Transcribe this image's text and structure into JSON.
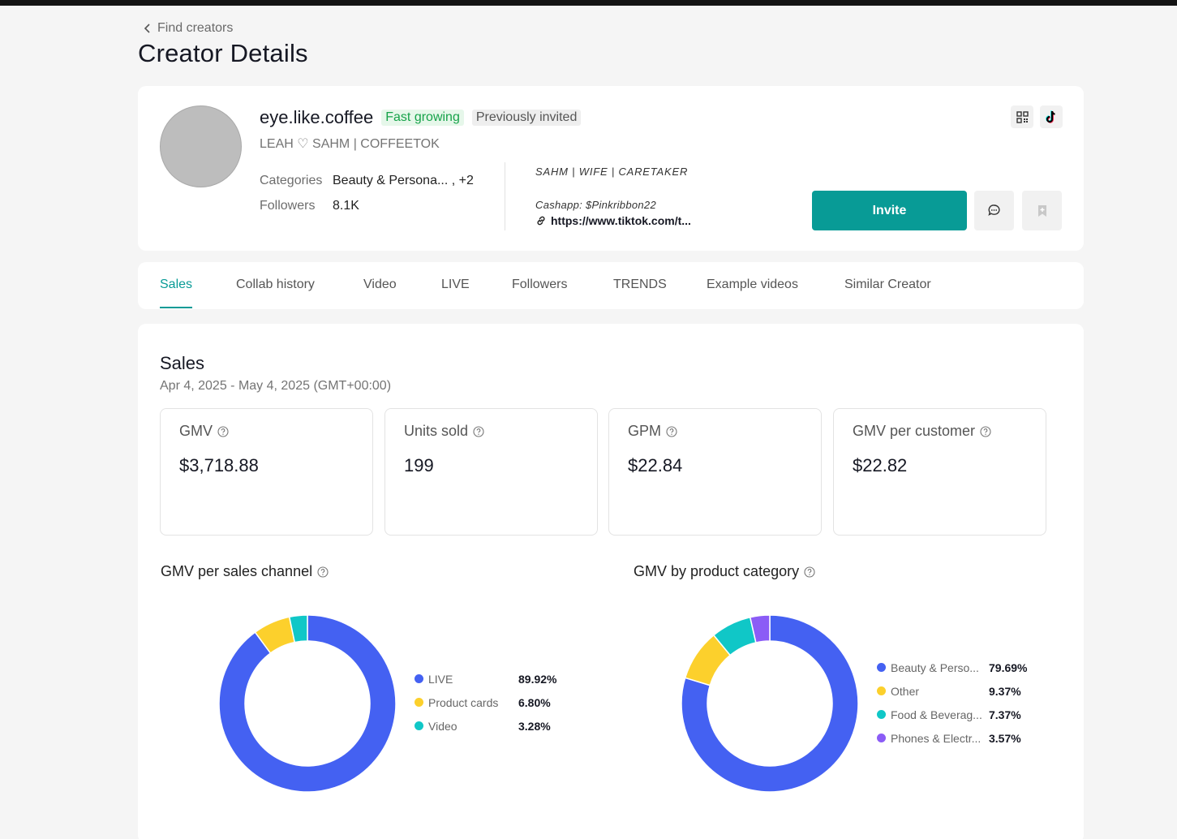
{
  "nav": {
    "back_label": "Find creators"
  },
  "page": {
    "title": "Creator Details"
  },
  "creator": {
    "handle": "eye.like.coffee",
    "badges": [
      "Fast growing",
      "Previously invited"
    ],
    "nickname": "LEAH ♡ SAHM | COFFEETOK",
    "categories_label": "Categories",
    "categories_value": "Beauty & Persona... , +2",
    "followers_label": "Followers",
    "followers_value": "8.1K",
    "bio_line1": "SAHM | WIFE | CARETAKER",
    "bio_line2": "Cashapp: $Pinkribbon22",
    "link": "https://www.tiktok.com/t..."
  },
  "actions": {
    "invite_label": "Invite",
    "icons": [
      "qr-code-icon",
      "tiktok-icon",
      "message-icon",
      "bookmark-icon"
    ]
  },
  "tabs": [
    {
      "label": "Sales",
      "active": true
    },
    {
      "label": "Collab history"
    },
    {
      "label": "Video"
    },
    {
      "label": "LIVE"
    },
    {
      "label": "Followers"
    },
    {
      "label": "TRENDS"
    },
    {
      "label": "Example videos"
    },
    {
      "label": "Similar Creator"
    }
  ],
  "sales": {
    "title": "Sales",
    "date_range": "Apr 4, 2025 - May 4, 2025 (GMT+00:00)",
    "metrics": [
      {
        "label": "GMV",
        "value": "$3,718.88"
      },
      {
        "label": "Units sold",
        "value": "199"
      },
      {
        "label": "GPM",
        "value": "$22.84"
      },
      {
        "label": "GMV per customer",
        "value": "$22.82"
      }
    ]
  },
  "chart_data": [
    {
      "type": "pie",
      "title": "GMV per sales channel",
      "categories": [
        "LIVE",
        "Product cards",
        "Video"
      ],
      "values": [
        89.92,
        6.8,
        3.28
      ],
      "labels": [
        "89.92%",
        "6.80%",
        "3.28%"
      ],
      "colors": [
        "#4461f2",
        "#fcd02c",
        "#10c7c7"
      ],
      "legend": "right"
    },
    {
      "type": "pie",
      "title": "GMV by product category",
      "categories": [
        "Beauty & Perso...",
        "Other",
        "Food & Beverag...",
        "Phones & Electr..."
      ],
      "values": [
        79.69,
        9.37,
        7.37,
        3.57
      ],
      "labels": [
        "79.69%",
        "9.37%",
        "7.37%",
        "3.57%"
      ],
      "colors": [
        "#4461f2",
        "#fcd02c",
        "#10c7c7",
        "#8b5cf6"
      ],
      "legend": "right"
    }
  ]
}
